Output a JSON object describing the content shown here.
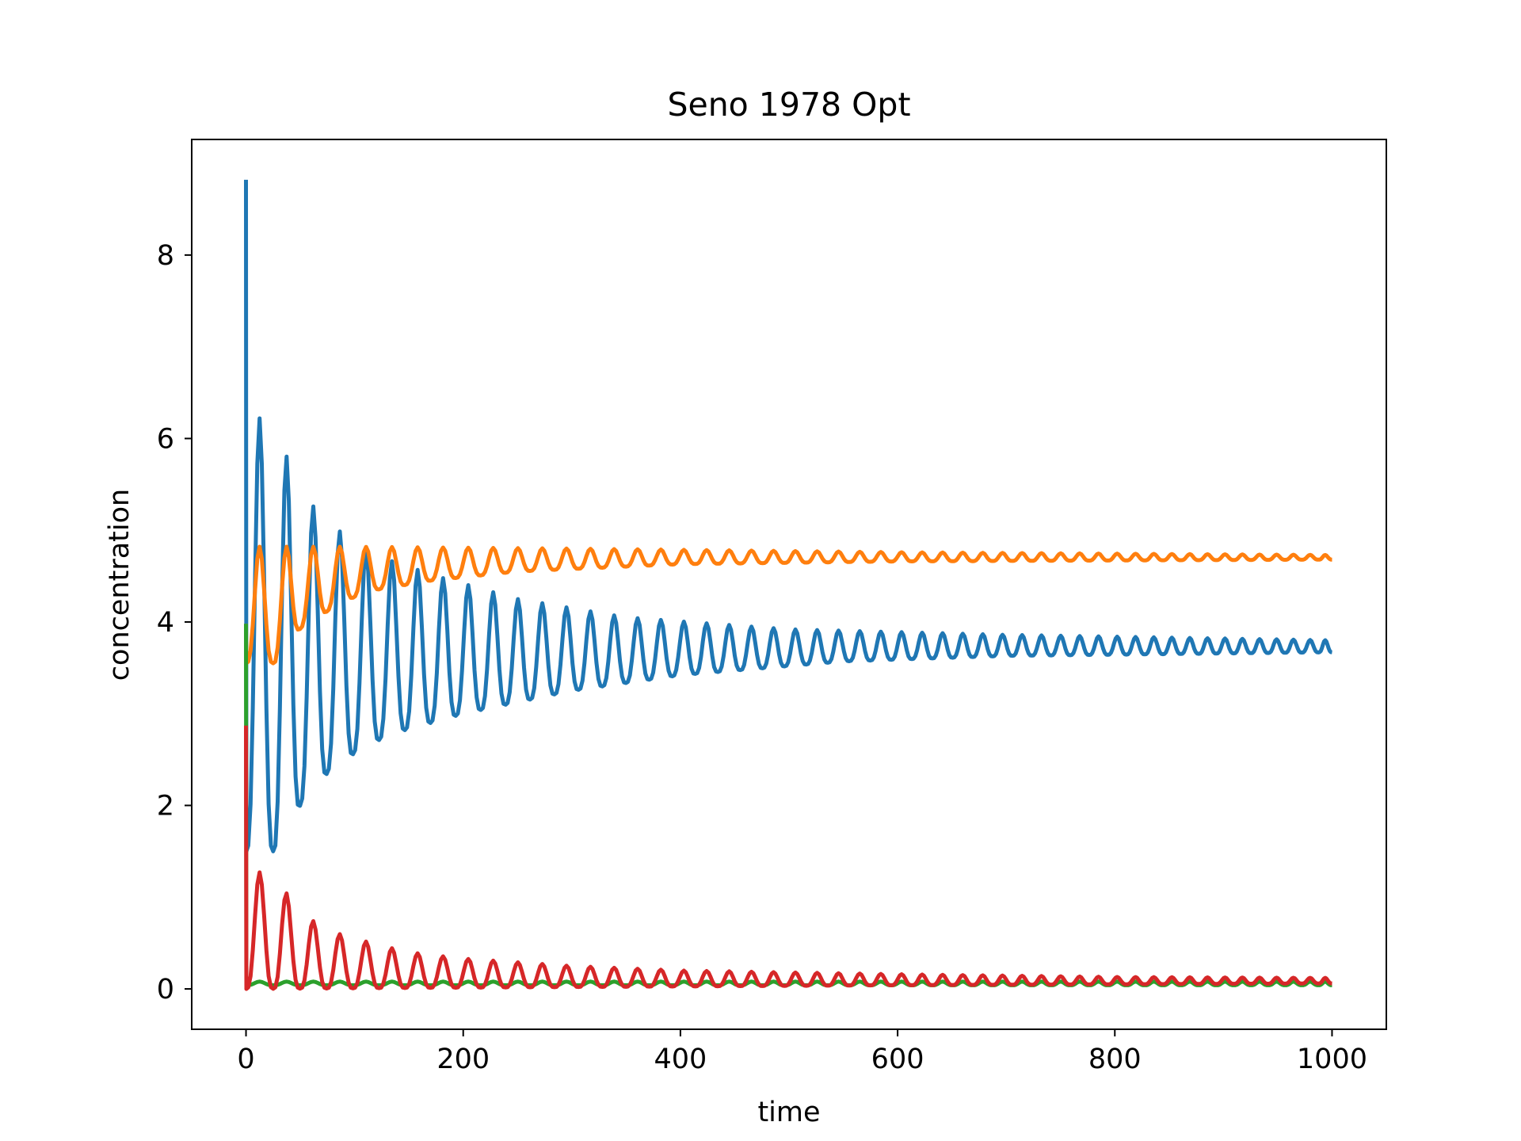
{
  "chart_data": {
    "type": "line",
    "title": "Seno 1978 Opt",
    "xlabel": "time",
    "ylabel": "concentration",
    "xlim": [
      -50,
      1050
    ],
    "ylim": [
      -0.44,
      9.26
    ],
    "xticks": [
      0,
      200,
      400,
      600,
      800,
      1000
    ],
    "yticks": [
      0,
      2,
      4,
      6,
      8
    ],
    "grid": false,
    "legend": "none",
    "series": [
      {
        "color": "#1f77b4",
        "initial": 8.82,
        "equilibrium": 3.73,
        "period_start": 25,
        "period_end": 15,
        "peaks": [
          [
            25,
            6.22
          ],
          [
            44,
            5.58
          ],
          [
            62,
            5.26
          ],
          [
            80,
            5.05
          ],
          [
            100,
            4.85
          ],
          [
            125,
            4.7
          ],
          [
            175,
            4.5
          ],
          [
            250,
            4.25
          ],
          [
            350,
            4.05
          ],
          [
            500,
            3.92
          ],
          [
            700,
            3.86
          ],
          [
            1000,
            3.8
          ]
        ],
        "troughs": [
          [
            27,
            1.5
          ],
          [
            47,
            1.95
          ],
          [
            65,
            2.25
          ],
          [
            85,
            2.45
          ],
          [
            110,
            2.65
          ],
          [
            140,
            2.8
          ],
          [
            200,
            3.0
          ],
          [
            300,
            3.25
          ],
          [
            400,
            3.42
          ],
          [
            550,
            3.57
          ],
          [
            700,
            3.63
          ],
          [
            1000,
            3.67
          ]
        ]
      },
      {
        "color": "#ff7f0e",
        "initial": 3.98,
        "equilibrium": 4.7,
        "period_start": 25,
        "period_end": 15,
        "peaks": [
          [
            25,
            4.82
          ],
          [
            100,
            4.82
          ],
          [
            300,
            4.8
          ],
          [
            600,
            4.76
          ],
          [
            1000,
            4.73
          ]
        ],
        "troughs": [
          [
            27,
            3.55
          ],
          [
            47,
            3.9
          ],
          [
            65,
            4.05
          ],
          [
            95,
            4.25
          ],
          [
            120,
            4.35
          ],
          [
            170,
            4.45
          ],
          [
            250,
            4.55
          ],
          [
            400,
            4.63
          ],
          [
            600,
            4.66
          ],
          [
            1000,
            4.68
          ]
        ]
      },
      {
        "color": "#2ca02c",
        "initial": 3.98,
        "equilibrium": 0.06,
        "period_start": 25,
        "period_end": 15,
        "peaks": [
          [
            0,
            0.08
          ],
          [
            1000,
            0.08
          ]
        ],
        "troughs": [
          [
            0,
            0.04
          ],
          [
            1000,
            0.04
          ]
        ]
      },
      {
        "color": "#d62728",
        "initial": 2.87,
        "equilibrium": 0.08,
        "period_start": 25,
        "period_end": 15,
        "peaks": [
          [
            25,
            1.27
          ],
          [
            45,
            0.9
          ],
          [
            63,
            0.73
          ],
          [
            80,
            0.62
          ],
          [
            100,
            0.55
          ],
          [
            125,
            0.47
          ],
          [
            150,
            0.4
          ],
          [
            200,
            0.33
          ],
          [
            300,
            0.25
          ],
          [
            400,
            0.2
          ],
          [
            600,
            0.16
          ],
          [
            800,
            0.13
          ],
          [
            1000,
            0.12
          ]
        ],
        "troughs": [
          [
            0,
            0.0
          ],
          [
            300,
            0.02
          ],
          [
            600,
            0.04
          ],
          [
            1000,
            0.06
          ]
        ]
      }
    ]
  }
}
